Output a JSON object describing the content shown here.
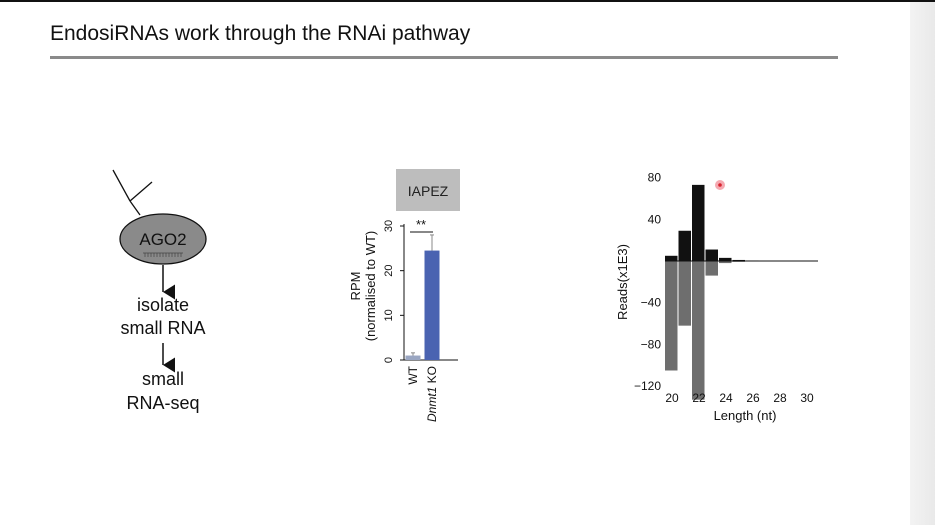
{
  "slide": {
    "title": "EndosiRNAs work through the RNAi pathway"
  },
  "diagram": {
    "protein_label": "AGO2",
    "step1_lines": [
      "isolate",
      "small RNA"
    ],
    "step2_lines": [
      "small",
      "RNA-seq"
    ]
  },
  "chart_data": [
    {
      "type": "bar",
      "title": "IAPEZ",
      "ylabel_lines": [
        "RPM",
        "(normalised to WT)"
      ],
      "ylim": [
        0,
        30
      ],
      "yticks": [
        0,
        10,
        20,
        30
      ],
      "categories": [
        {
          "label": "WT",
          "italic": ""
        },
        {
          "label": " KO",
          "italic": "Dnmt1"
        }
      ],
      "values": [
        1,
        24.5
      ],
      "errors": [
        0.6,
        3.5
      ],
      "colors": [
        "#9aa6c2",
        "#4a63b1"
      ],
      "significance": "**"
    },
    {
      "type": "bar",
      "xlabel": "Length (nt)",
      "ylabel": "Reads(x1E3)",
      "ylim": [
        -135,
        80
      ],
      "yticks_positive": [
        80,
        40
      ],
      "yticks_negative": [
        -40,
        -80,
        -120
      ],
      "xticks": [
        20,
        22,
        24,
        26,
        28,
        30
      ],
      "x": [
        20,
        21,
        22,
        23,
        24,
        25,
        26,
        27,
        28,
        29,
        30
      ],
      "series": [
        {
          "values": [
            5,
            29,
            73,
            11,
            3,
            1,
            0.5,
            0.3,
            0.2,
            0.2,
            0.2
          ],
          "color": "#111111"
        },
        {
          "values": [
            -105,
            -62,
            -133,
            -14,
            -2,
            -0.8,
            -0.4,
            -0.3,
            -0.2,
            -0.2,
            -0.2
          ],
          "color": "#6e6e6e"
        }
      ]
    }
  ]
}
